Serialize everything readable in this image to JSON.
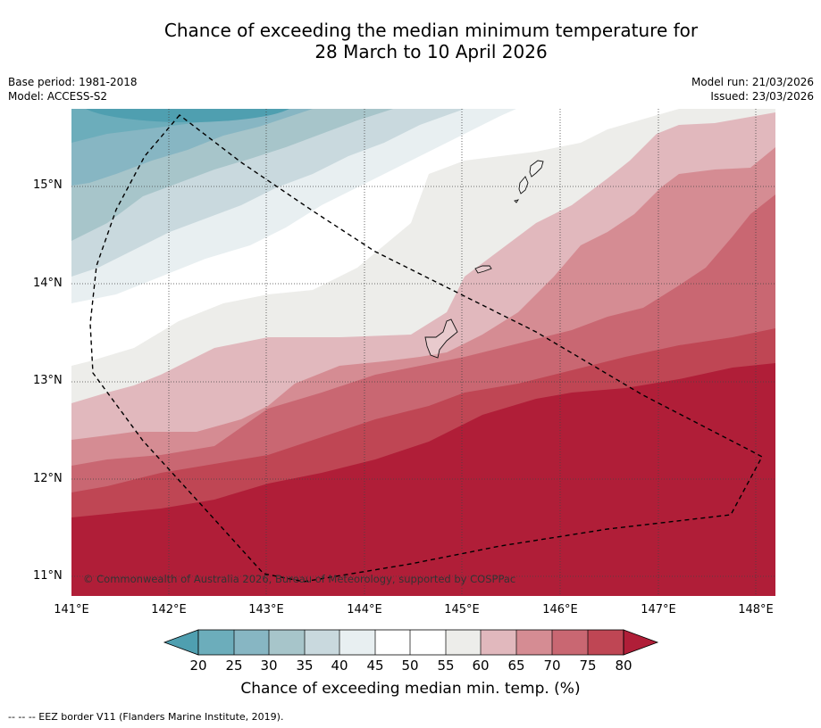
{
  "title": {
    "line1": "Chance of exceeding the median minimum temperature for",
    "line2": "28 March to 10 April 2026"
  },
  "meta": {
    "base_period": "Base period: 1981-2018",
    "model": "Model: ACCESS-S2",
    "model_run": "Model run: 21/03/2026",
    "issued": "Issued: 23/03/2026"
  },
  "map": {
    "lat_ticks": [
      "15°N",
      "14°N",
      "13°N",
      "12°N",
      "11°N"
    ],
    "lon_ticks": [
      "141°E",
      "142°E",
      "143°E",
      "144°E",
      "145°E",
      "146°E",
      "147°E",
      "148°E"
    ],
    "copyright": "© Commonwealth of Australia 2026, Bureau of Meteorology, supported by COSPPac",
    "colors": {
      "c20": "#4f9fb0",
      "c25": "#6cadbb",
      "c30": "#87b6c3",
      "c35": "#a7c5ca",
      "c40": "#c9d9de",
      "c45": "#e8eff1",
      "c50": "#ffffff",
      "c55": "#ffffff",
      "c60": "#ededea",
      "c65": "#e1b8bd",
      "c70": "#d58c93",
      "c75": "#c96772",
      "c80": "#bf4654",
      "c85": "#b01e38"
    }
  },
  "colorbar": {
    "labels": [
      "20",
      "25",
      "30",
      "35",
      "40",
      "45",
      "50",
      "55",
      "60",
      "65",
      "70",
      "75",
      "80"
    ],
    "title": "Chance of exceeding median min. temp. (%)"
  },
  "footnote": "--  --  -- EEZ border V11 (Flanders Marine Institute, 2019)."
}
